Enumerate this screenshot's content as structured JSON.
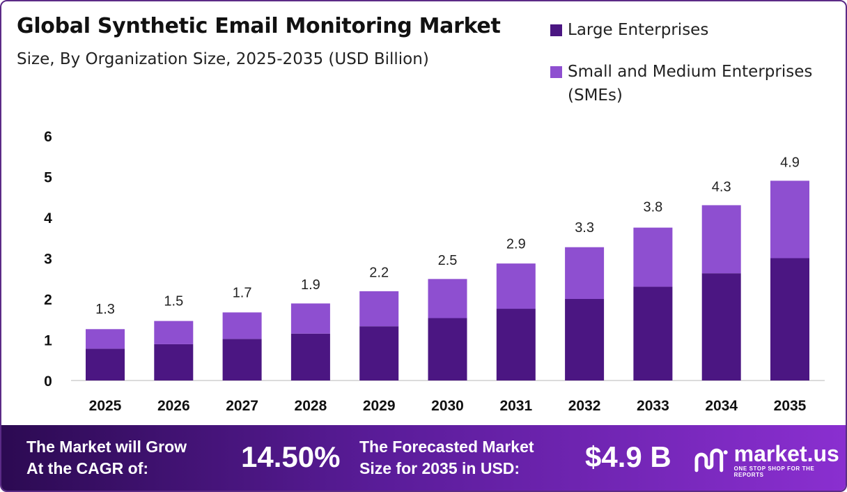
{
  "header": {
    "title": "Global Synthetic Email Monitoring Market",
    "subtitle": "Size, By Organization Size, 2025-2035 (USD Billion)"
  },
  "chart_data": {
    "type": "bar",
    "stacked": true,
    "categories": [
      "2025",
      "2026",
      "2027",
      "2028",
      "2029",
      "2030",
      "2031",
      "2032",
      "2033",
      "2034",
      "2035"
    ],
    "series": [
      {
        "name": "Large Enterprises",
        "color": "#4b1682",
        "values": [
          0.78,
          0.89,
          1.02,
          1.15,
          1.33,
          1.53,
          1.76,
          2.0,
          2.3,
          2.63,
          3.0
        ]
      },
      {
        "name": "Small and Medium Enterprises (SMEs)",
        "color": "#8e4fd0",
        "values": [
          0.48,
          0.57,
          0.65,
          0.74,
          0.86,
          0.96,
          1.11,
          1.27,
          1.45,
          1.67,
          1.9
        ]
      }
    ],
    "totals": [
      "1.3",
      "1.5",
      "1.7",
      "1.9",
      "2.2",
      "2.5",
      "2.9",
      "3.3",
      "3.8",
      "4.3",
      "4.9"
    ],
    "yticks": [
      0,
      1,
      2,
      3,
      4,
      5,
      6
    ],
    "ylim": [
      0,
      6
    ],
    "legend_position": "top-right",
    "grid": false
  },
  "footer": {
    "cagr_label_line1": "The Market will Grow",
    "cagr_label_line2": "At the CAGR of:",
    "cagr_value": "14.50%",
    "forecast_label_line1": "The Forecasted Market",
    "forecast_label_line2": "Size for 2035 in USD:",
    "forecast_value": "$4.9 B",
    "brand_name": "market.us",
    "brand_tagline": "ONE STOP SHOP FOR THE REPORTS",
    "brand_icon": "market-us-logo-icon"
  }
}
